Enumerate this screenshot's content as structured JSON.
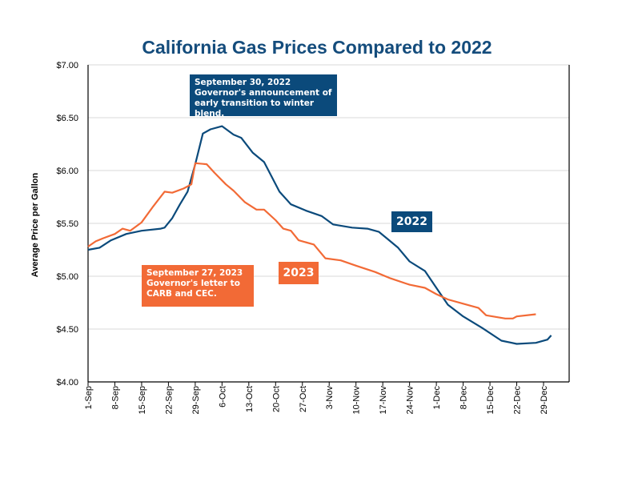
{
  "chart_data": {
    "type": "line",
    "title": "California Gas Prices Compared to 2022",
    "xlabel": "",
    "ylabel": "Average Price per Gallon",
    "ylim": [
      4.0,
      7.0
    ],
    "yticks": [
      "$4.00",
      "$4.50",
      "$5.00",
      "$5.50",
      "$6.00",
      "$6.50",
      "$7.00"
    ],
    "xticks": [
      "1-Sep",
      "8-Sep",
      "15-Sep",
      "22-Sep",
      "29-Sep",
      "6-Oct",
      "13-Oct",
      "20-Oct",
      "27-Oct",
      "3-Nov",
      "10-Nov",
      "17-Nov",
      "24-Nov",
      "1-Dec",
      "8-Dec",
      "15-Dec",
      "22-Dec",
      "29-Dec"
    ],
    "grid": true,
    "series": [
      {
        "name": "2022",
        "color": "#0b4a7b",
        "x": [
          "09-01",
          "09-04",
          "09-07",
          "09-11",
          "09-15",
          "09-20",
          "09-21",
          "09-23",
          "09-25",
          "09-27",
          "09-29",
          "10-01",
          "10-03",
          "10-06",
          "10-09",
          "10-11",
          "10-14",
          "10-17",
          "10-21",
          "10-24",
          "10-28",
          "11-01",
          "11-04",
          "11-09",
          "11-13",
          "11-16",
          "11-18",
          "11-21",
          "11-24",
          "11-28",
          "12-01",
          "12-04",
          "12-08",
          "12-13",
          "12-18",
          "12-22",
          "12-27",
          "12-30",
          "12-31"
        ],
        "y": [
          5.25,
          5.27,
          5.34,
          5.4,
          5.43,
          5.45,
          5.46,
          5.55,
          5.68,
          5.8,
          6.06,
          6.35,
          6.39,
          6.42,
          6.34,
          6.31,
          6.17,
          6.08,
          5.8,
          5.68,
          5.62,
          5.57,
          5.49,
          5.46,
          5.45,
          5.42,
          5.36,
          5.27,
          5.14,
          5.05,
          4.89,
          4.73,
          4.62,
          4.51,
          4.39,
          4.36,
          4.37,
          4.4,
          4.44
        ]
      },
      {
        "name": "2023",
        "color": "#f26a36",
        "x": [
          "09-01",
          "09-03",
          "09-05",
          "09-08",
          "09-10",
          "09-12",
          "09-15",
          "09-18",
          "09-21",
          "09-23",
          "09-26",
          "09-28",
          "09-29",
          "10-02",
          "10-04",
          "10-07",
          "10-09",
          "10-12",
          "10-15",
          "10-17",
          "10-20",
          "10-22",
          "10-24",
          "10-26",
          "10-30",
          "11-02",
          "11-06",
          "11-10",
          "11-15",
          "11-19",
          "11-24",
          "11-28",
          "12-01",
          "12-04",
          "12-08",
          "12-12",
          "12-14",
          "12-19",
          "12-21",
          "12-22",
          "12-27"
        ],
        "y": [
          5.28,
          5.33,
          5.36,
          5.4,
          5.45,
          5.43,
          5.51,
          5.66,
          5.8,
          5.79,
          5.83,
          5.87,
          6.07,
          6.06,
          5.98,
          5.87,
          5.81,
          5.7,
          5.63,
          5.63,
          5.53,
          5.45,
          5.43,
          5.34,
          5.3,
          5.17,
          5.15,
          5.1,
          5.04,
          4.98,
          4.92,
          4.89,
          4.83,
          4.78,
          4.74,
          4.7,
          4.63,
          4.6,
          4.6,
          4.62,
          4.64
        ]
      }
    ],
    "annotations": {
      "a2022": {
        "line1": "September 30, 2022",
        "line2": "Governor's announcement of",
        "line3": "early transition to winter blend.",
        "color": "#0b4a7b"
      },
      "a2023": {
        "line1": "September 27, 2023",
        "line2": "Governor's letter to",
        "line3": "CARB and CEC.",
        "color": "#f26a36"
      },
      "label2022": "2022",
      "label2023": "2023"
    }
  }
}
